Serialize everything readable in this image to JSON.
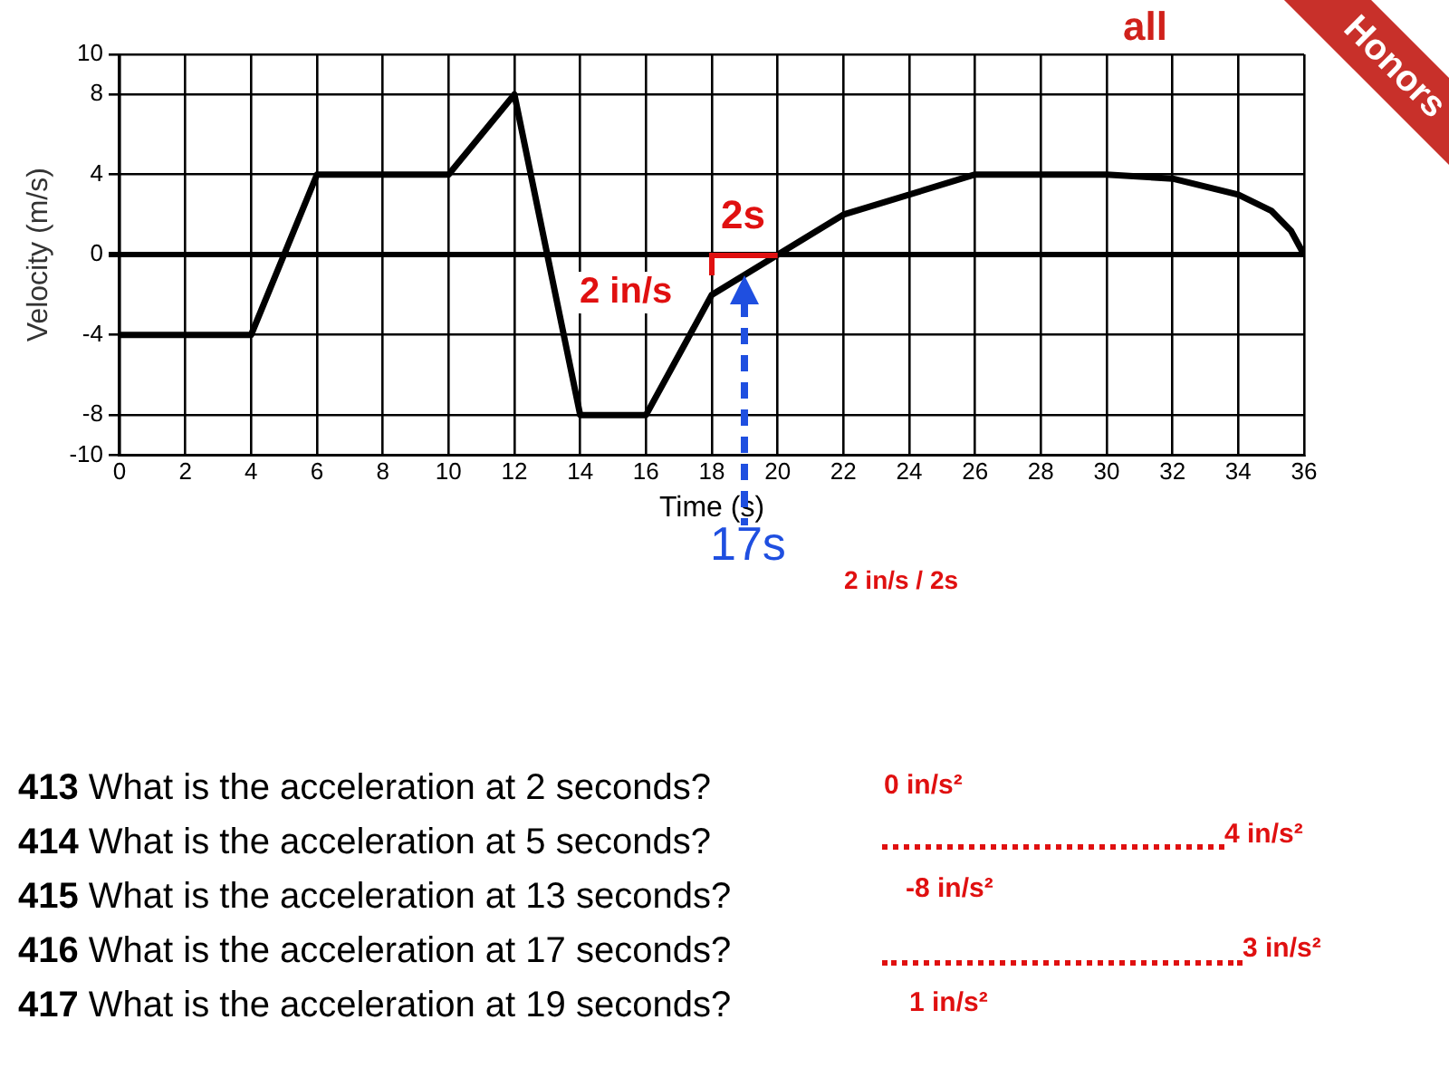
{
  "chart_data": {
    "type": "line",
    "xlabel": "Time (s)",
    "ylabel": "Velocity (m/s)",
    "x": [
      0,
      4,
      6,
      10,
      12,
      14,
      16,
      18,
      20,
      22,
      26,
      30,
      32,
      34,
      35,
      35.6,
      36
    ],
    "series": [
      {
        "color": "#000000",
        "values": [
          -4,
          -4,
          4,
          4,
          8,
          -8,
          -8,
          -2,
          0,
          2,
          4,
          4,
          3.8,
          3,
          2.2,
          1.2,
          0
        ]
      }
    ],
    "xlim": [
      0,
      36
    ],
    "xticks": [
      0,
      2,
      4,
      6,
      8,
      10,
      12,
      14,
      16,
      18,
      20,
      22,
      24,
      26,
      28,
      30,
      32,
      34,
      36
    ],
    "ylim": [
      -10,
      10
    ],
    "yticks": [
      -10,
      -8,
      -4,
      0,
      4,
      8,
      10
    ],
    "grid": true,
    "legend": false,
    "marker": "none",
    "line_style": "solid",
    "annotations": [
      "all",
      "Honors",
      "2s",
      "2 in/s",
      "17s",
      "2 in/s / 2s",
      "413 What is the acceleration at 2 seconds?",
      "414 What is the acceleration at 5 seconds?",
      "415 What is the acceleration at 13 seconds?",
      "416 What is the acceleration at 17 seconds?",
      "417 What is the acceleration at 19 seconds?",
      "0 in/s²",
      "4 in/s²",
      "-8 in/s²",
      "3 in/s²",
      "1 in/s²"
    ]
  }
}
